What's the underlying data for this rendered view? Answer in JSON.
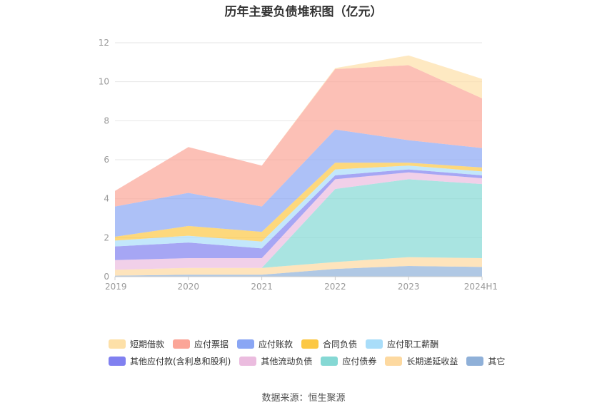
{
  "chart_data": {
    "type": "area",
    "stacked": true,
    "title": "历年主要负债堆积图（亿元）",
    "x": [
      "2019",
      "2020",
      "2021",
      "2022",
      "2023",
      "2024H1"
    ],
    "ylim": [
      0,
      12
    ],
    "yticks": [
      0,
      2,
      4,
      6,
      8,
      10,
      12
    ],
    "grid": true,
    "legend_position": "bottom",
    "series": [
      {
        "name": "其它",
        "color": "#8fb0d8",
        "values": [
          0.05,
          0.1,
          0.1,
          0.4,
          0.55,
          0.5
        ]
      },
      {
        "name": "长期递延收益",
        "color": "#fdd9a0",
        "values": [
          0.3,
          0.35,
          0.35,
          0.35,
          0.45,
          0.45
        ]
      },
      {
        "name": "应付债券",
        "color": "#85d8d4",
        "values": [
          0,
          0,
          0,
          3.75,
          4.0,
          3.8
        ]
      },
      {
        "name": "其他流动负债",
        "color": "#ebbcdf",
        "values": [
          0.5,
          0.5,
          0.5,
          0.5,
          0.35,
          0.3
        ]
      },
      {
        "name": "其他应付款(含利息和股利)",
        "color": "#8080f0",
        "values": [
          0.7,
          0.8,
          0.5,
          0.2,
          0.15,
          0.15
        ]
      },
      {
        "name": "应付职工薪酬",
        "color": "#a9ddf9",
        "values": [
          0.3,
          0.35,
          0.35,
          0.3,
          0.2,
          0.2
        ]
      },
      {
        "name": "合同负债",
        "color": "#fcc844",
        "values": [
          0.2,
          0.5,
          0.5,
          0.35,
          0.15,
          0.2
        ]
      },
      {
        "name": "应付账款",
        "color": "#8aa6f4",
        "values": [
          1.55,
          1.7,
          1.3,
          1.7,
          1.15,
          1.0
        ]
      },
      {
        "name": "应付票据",
        "color": "#fba597",
        "values": [
          0.8,
          2.35,
          2.1,
          3.1,
          3.85,
          2.55
        ]
      },
      {
        "name": "短期借款",
        "color": "#fde0a8",
        "values": [
          0,
          0,
          0,
          0.05,
          0.5,
          1.0
        ]
      }
    ],
    "legend_order": [
      "短期借款",
      "应付票据",
      "应付账款",
      "合同负债",
      "应付职工薪酬",
      "其他应付款(含利息和股利)",
      "其他流动负债",
      "应付债券",
      "长期递延收益",
      "其它"
    ]
  },
  "source": "数据来源：恒生聚源"
}
